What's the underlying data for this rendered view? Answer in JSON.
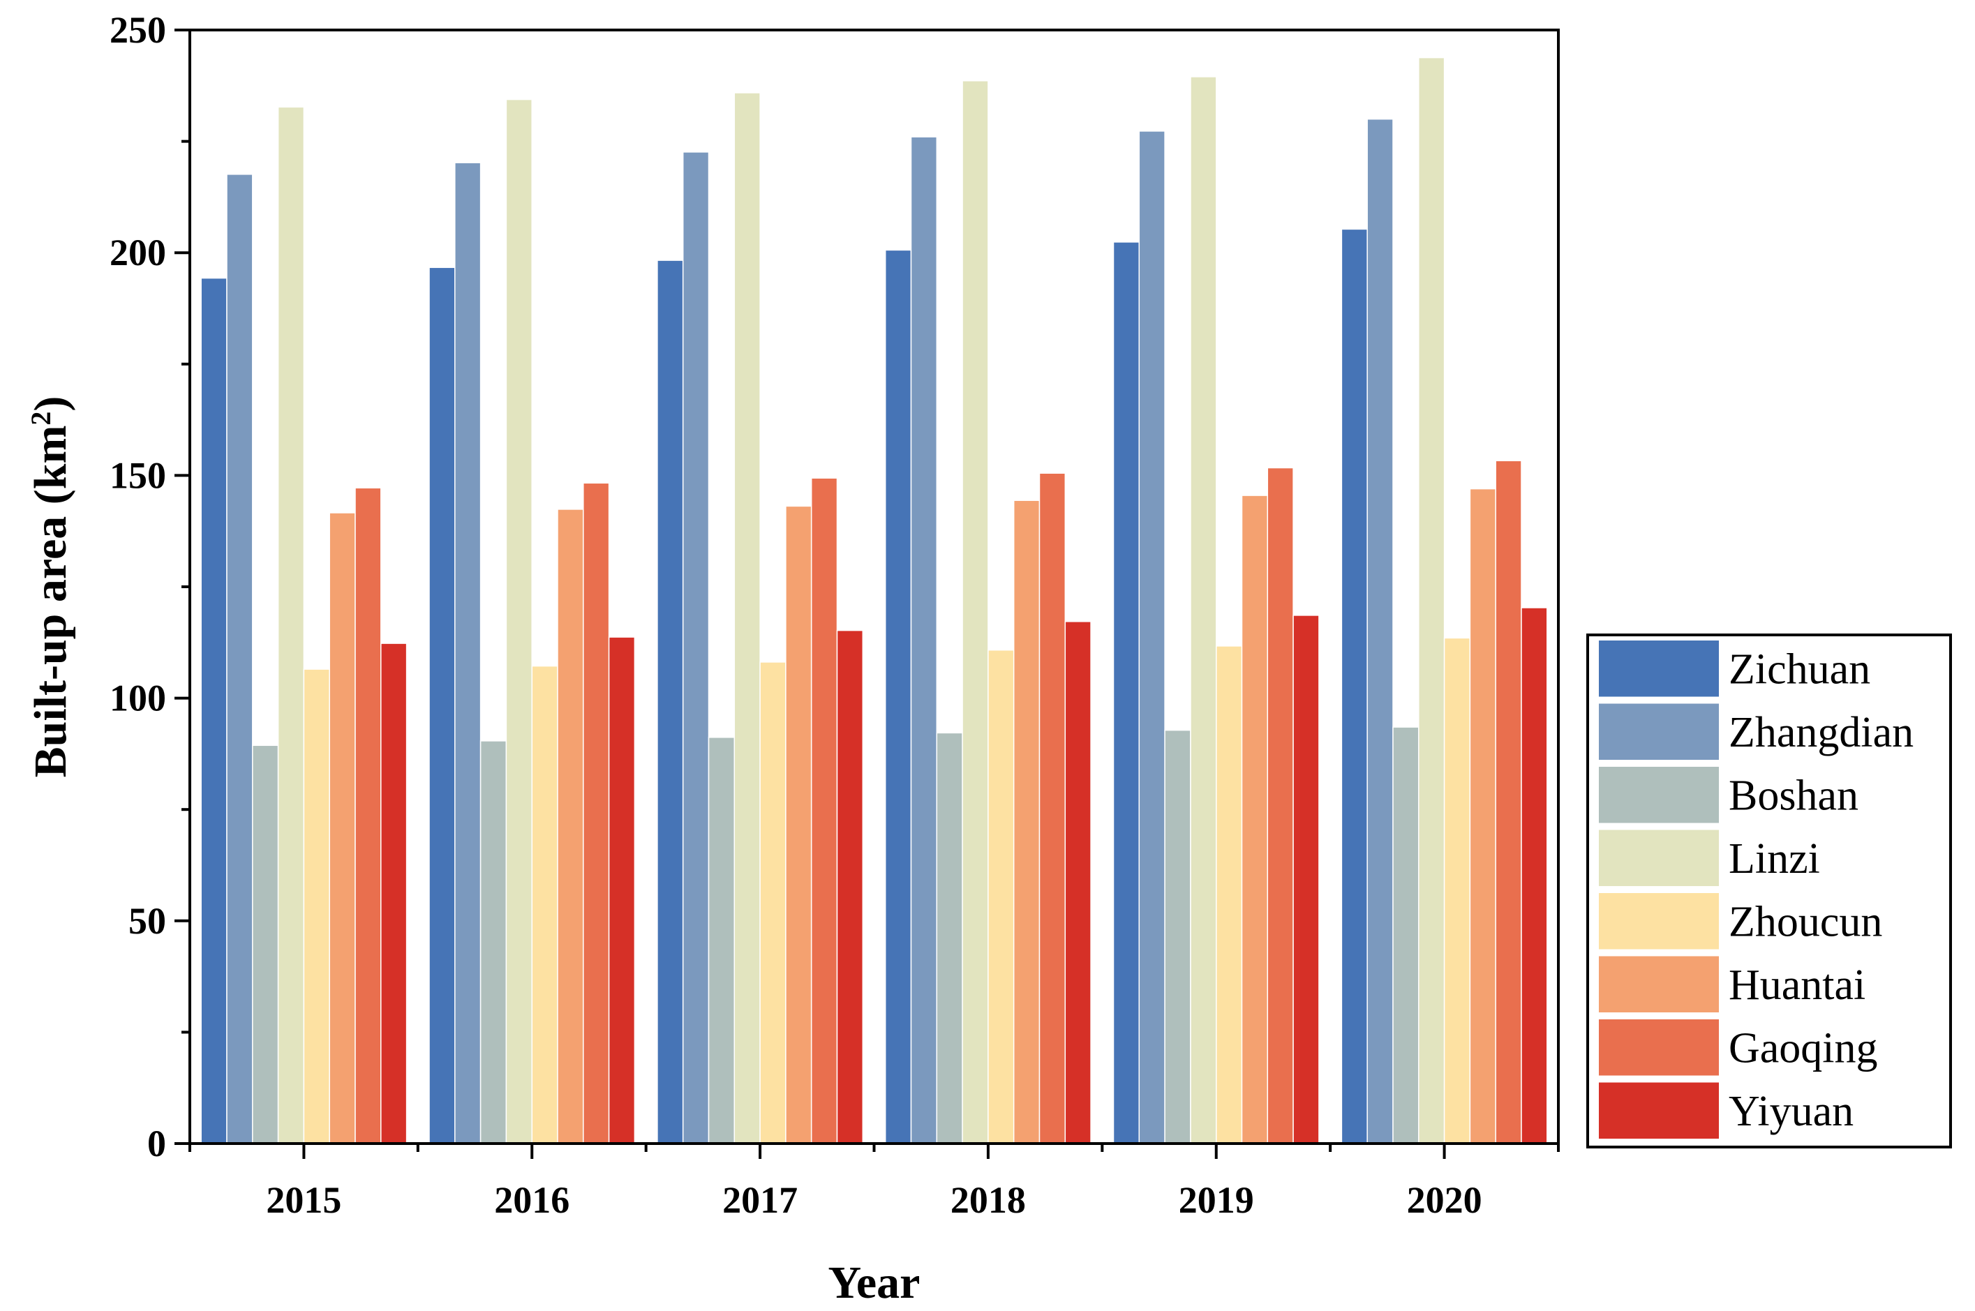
{
  "chart_data": {
    "type": "bar",
    "title": "",
    "xlabel": "Year",
    "ylabel": "Built-up area (km",
    "ylabel_superscript": "2",
    "ylabel_suffix": ")",
    "ylim": [
      0,
      250
    ],
    "yticks": [
      0,
      50,
      100,
      150,
      200,
      250
    ],
    "categories": [
      "2015",
      "2016",
      "2017",
      "2018",
      "2019",
      "2020"
    ],
    "legend_position": "right",
    "series": [
      {
        "name": "Zichuan",
        "color": "#4674B6",
        "values": [
          194.3,
          196.7,
          198.3,
          200.6,
          202.4,
          205.3
        ]
      },
      {
        "name": "Zhangdian",
        "color": "#7B99BE",
        "values": [
          217.6,
          220.2,
          222.6,
          226.0,
          227.3,
          230.0
        ]
      },
      {
        "name": "Boshan",
        "color": "#AFBFBC",
        "values": [
          89.4,
          90.4,
          91.2,
          92.2,
          92.8,
          93.5
        ]
      },
      {
        "name": "Linzi",
        "color": "#E2E4BF",
        "values": [
          232.7,
          234.4,
          235.9,
          238.6,
          239.5,
          243.8
        ]
      },
      {
        "name": "Zhoucun",
        "color": "#FDE1A2",
        "values": [
          106.5,
          107.2,
          108.1,
          110.8,
          111.7,
          113.5
        ]
      },
      {
        "name": "Huantai",
        "color": "#F4A170",
        "values": [
          141.6,
          142.4,
          143.1,
          144.4,
          145.5,
          147.0
        ]
      },
      {
        "name": "Gaoqing",
        "color": "#E96F4E",
        "values": [
          147.2,
          148.3,
          149.4,
          150.5,
          151.7,
          153.3
        ]
      },
      {
        "name": "Yiyuan",
        "color": "#D63027",
        "values": [
          112.3,
          113.7,
          115.2,
          117.2,
          118.6,
          120.3
        ]
      }
    ]
  }
}
